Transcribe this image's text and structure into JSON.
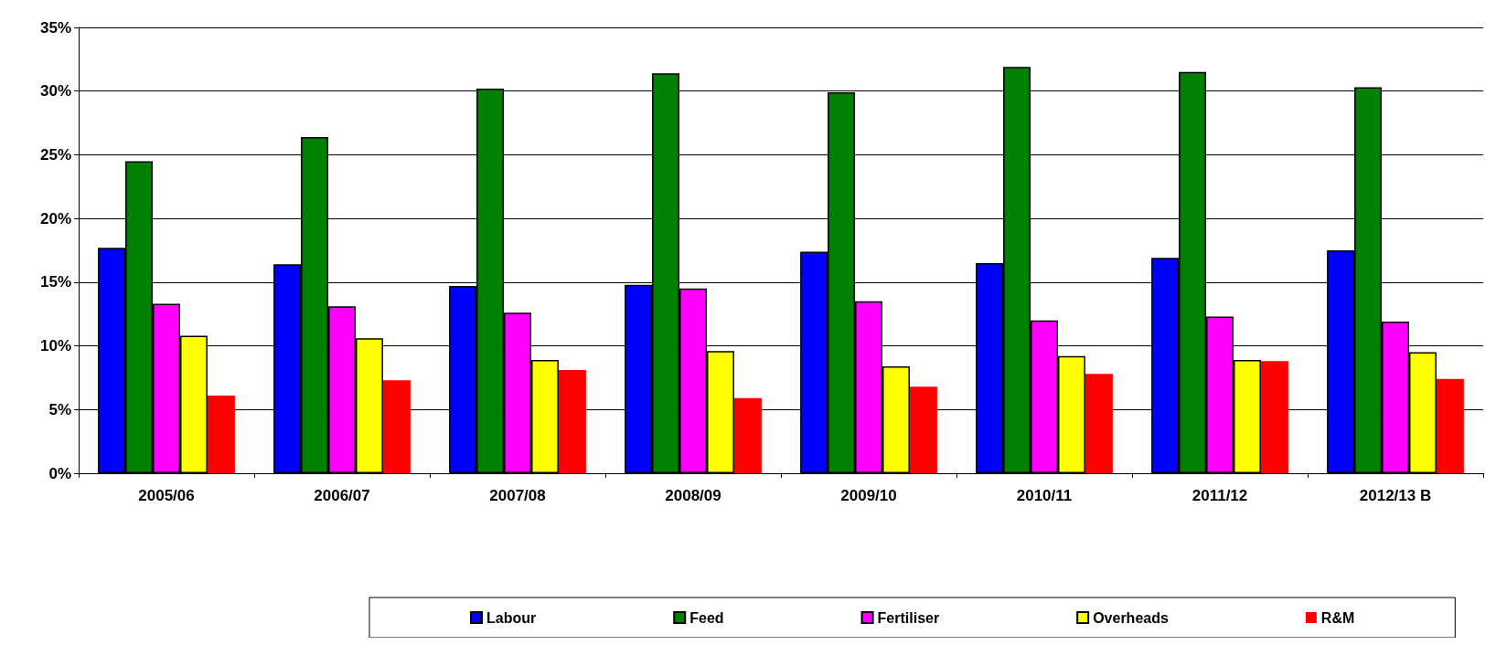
{
  "chart_data": {
    "type": "bar",
    "categories": [
      "2005/06",
      "2006/07",
      "2007/08",
      "2008/09",
      "2009/10",
      "2010/11",
      "2011/12",
      "2012/13 B"
    ],
    "series": [
      {
        "name": "Labour",
        "color": "#0000ff",
        "values": [
          17.7,
          16.4,
          14.7,
          14.8,
          17.4,
          16.5,
          16.9,
          17.5
        ]
      },
      {
        "name": "Feed",
        "color": "#008000",
        "values": [
          24.5,
          26.4,
          30.2,
          31.4,
          29.9,
          31.9,
          31.5,
          30.3
        ]
      },
      {
        "name": "Fertiliser",
        "color": "#ff00ff",
        "values": [
          13.3,
          13.1,
          12.6,
          14.5,
          13.5,
          12.0,
          12.3,
          11.9
        ]
      },
      {
        "name": "Overheads",
        "color": "#ffff00",
        "values": [
          10.8,
          10.6,
          8.9,
          9.6,
          8.4,
          9.2,
          8.9,
          9.5
        ]
      },
      {
        "name": "R&M",
        "color": "#ff0000",
        "values": [
          6.1,
          7.3,
          8.1,
          5.9,
          6.8,
          7.8,
          8.8,
          7.4
        ]
      }
    ],
    "ylim": [
      0,
      35
    ],
    "yticks": [
      {
        "value": 0,
        "label": "0%"
      },
      {
        "value": 5,
        "label": "5%"
      },
      {
        "value": 10,
        "label": "10%"
      },
      {
        "value": 15,
        "label": "15%"
      },
      {
        "value": 20,
        "label": "20%"
      },
      {
        "value": 25,
        "label": "25%"
      },
      {
        "value": 30,
        "label": "30%"
      },
      {
        "value": 35,
        "label": "35%"
      }
    ],
    "grid": "y",
    "legend": "bottom"
  }
}
